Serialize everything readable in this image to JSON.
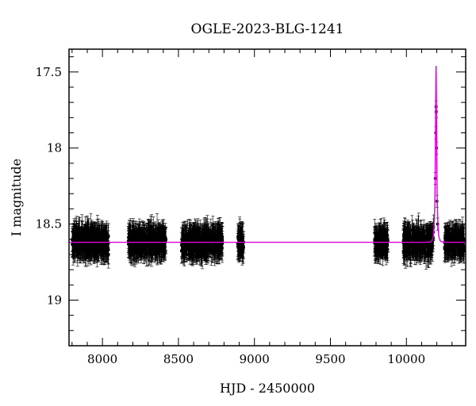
{
  "chart_data": {
    "type": "scatter",
    "title": "OGLE-2023-BLG-1241",
    "xlabel": "HJD - 2450000",
    "ylabel": "I magnitude",
    "xlim": [
      7780,
      10390
    ],
    "ylim": [
      19.3,
      17.35
    ],
    "y_inverted": true,
    "grid": false,
    "legend": "none",
    "x_major_ticks": [
      8000,
      8500,
      9000,
      9500,
      10000
    ],
    "x_tick_labels": [
      "8000",
      "8500",
      "9000",
      "9500",
      "10000"
    ],
    "y_major_ticks": [
      17.5,
      18,
      18.5,
      19
    ],
    "y_tick_labels": [
      "17.5",
      "18",
      "18.5",
      "19"
    ],
    "baseline_mag": 18.62,
    "season_ranges": [
      [
        7800,
        8040
      ],
      [
        8170,
        8420
      ],
      [
        8520,
        8790
      ],
      [
        8890,
        8930
      ],
      [
        9790,
        9880
      ],
      [
        9980,
        10180
      ],
      [
        10250,
        10380
      ]
    ],
    "model": {
      "t0": 10195,
      "u0": 0.36,
      "tE": 8,
      "baseline": 18.62,
      "peak_mag": 17.8
    },
    "peak_points": [
      {
        "x": 10190,
        "y": 18.2
      },
      {
        "x": 10193,
        "y": 17.9
      },
      {
        "x": 10195,
        "y": 17.73
      },
      {
        "x": 10196,
        "y": 17.76
      },
      {
        "x": 10198,
        "y": 18.0
      },
      {
        "x": 10201,
        "y": 18.35
      },
      {
        "x": 10205,
        "y": 18.5
      }
    ],
    "colors": {
      "points": "#000000",
      "model": "#e000e0"
    }
  }
}
